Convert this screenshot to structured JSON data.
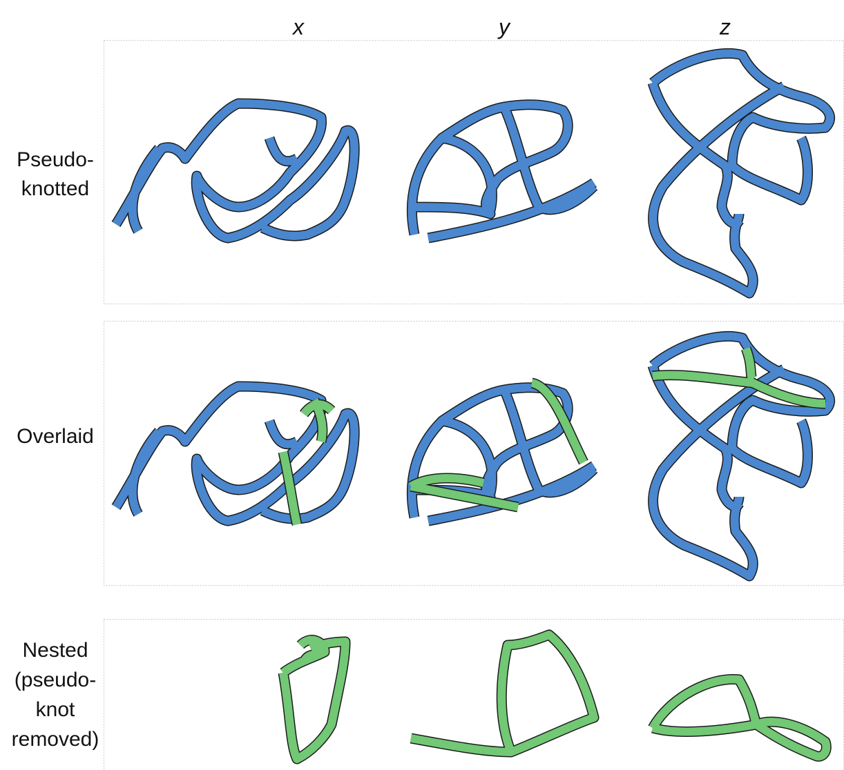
{
  "columns": [
    "x",
    "y",
    "z"
  ],
  "rows": [
    {
      "label": [
        "Pseudo-",
        "knotted"
      ]
    },
    {
      "label": [
        "Overlaid"
      ]
    },
    {
      "label": [
        "Nested",
        "(pseudo-",
        "knot",
        "removed)"
      ]
    }
  ]
}
